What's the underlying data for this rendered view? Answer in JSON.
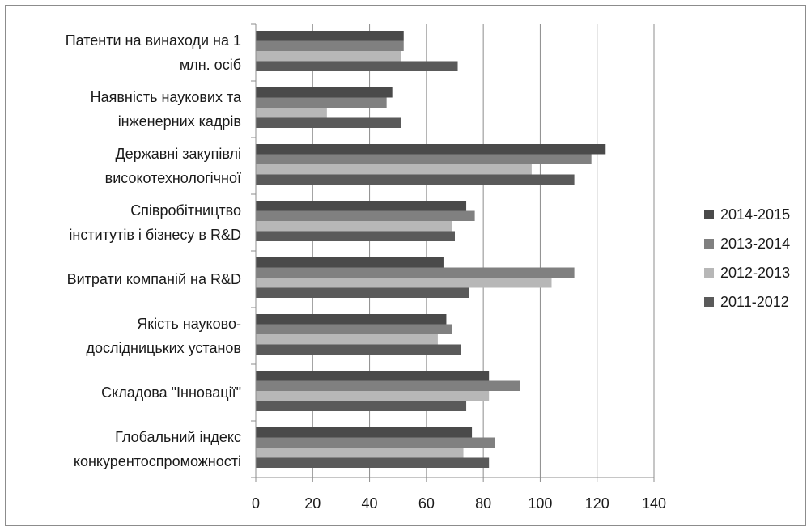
{
  "chart_data": {
    "type": "bar",
    "orientation": "horizontal",
    "categories": [
      [
        "Патенти на винаходи на 1",
        "млн. осіб"
      ],
      [
        "Наявність наукових та",
        "інженерних кадрів"
      ],
      [
        "Державні закупівлі",
        "високотехнологічної"
      ],
      [
        "Співробітництво",
        "інститутів і бізнесу в R&D"
      ],
      [
        "Витрати компаній на R&D"
      ],
      [
        "Якість науково-",
        "дослідницьких установ"
      ],
      [
        "Складова \"Інновації\""
      ],
      [
        "Глобальний індекс",
        "конкурентоспроможності"
      ]
    ],
    "series": [
      {
        "name": "2014-2015",
        "color": "#4a4a4a",
        "values": [
          52,
          48,
          123,
          74,
          66,
          67,
          82,
          76
        ]
      },
      {
        "name": "2013-2014",
        "color": "#808080",
        "values": [
          52,
          46,
          118,
          77,
          112,
          69,
          93,
          84
        ]
      },
      {
        "name": "2012-2013",
        "color": "#b7b7b7",
        "values": [
          51,
          25,
          97,
          69,
          104,
          64,
          82,
          73
        ]
      },
      {
        "name": "2011-2012",
        "color": "#5a5a5a",
        "values": [
          71,
          51,
          112,
          70,
          75,
          72,
          74,
          82
        ]
      }
    ],
    "xlim": [
      0,
      140
    ],
    "x_ticks": [
      "0",
      "20",
      "40",
      "60",
      "80",
      "100",
      "120",
      "140"
    ],
    "grid": true,
    "legend_position": "right"
  }
}
